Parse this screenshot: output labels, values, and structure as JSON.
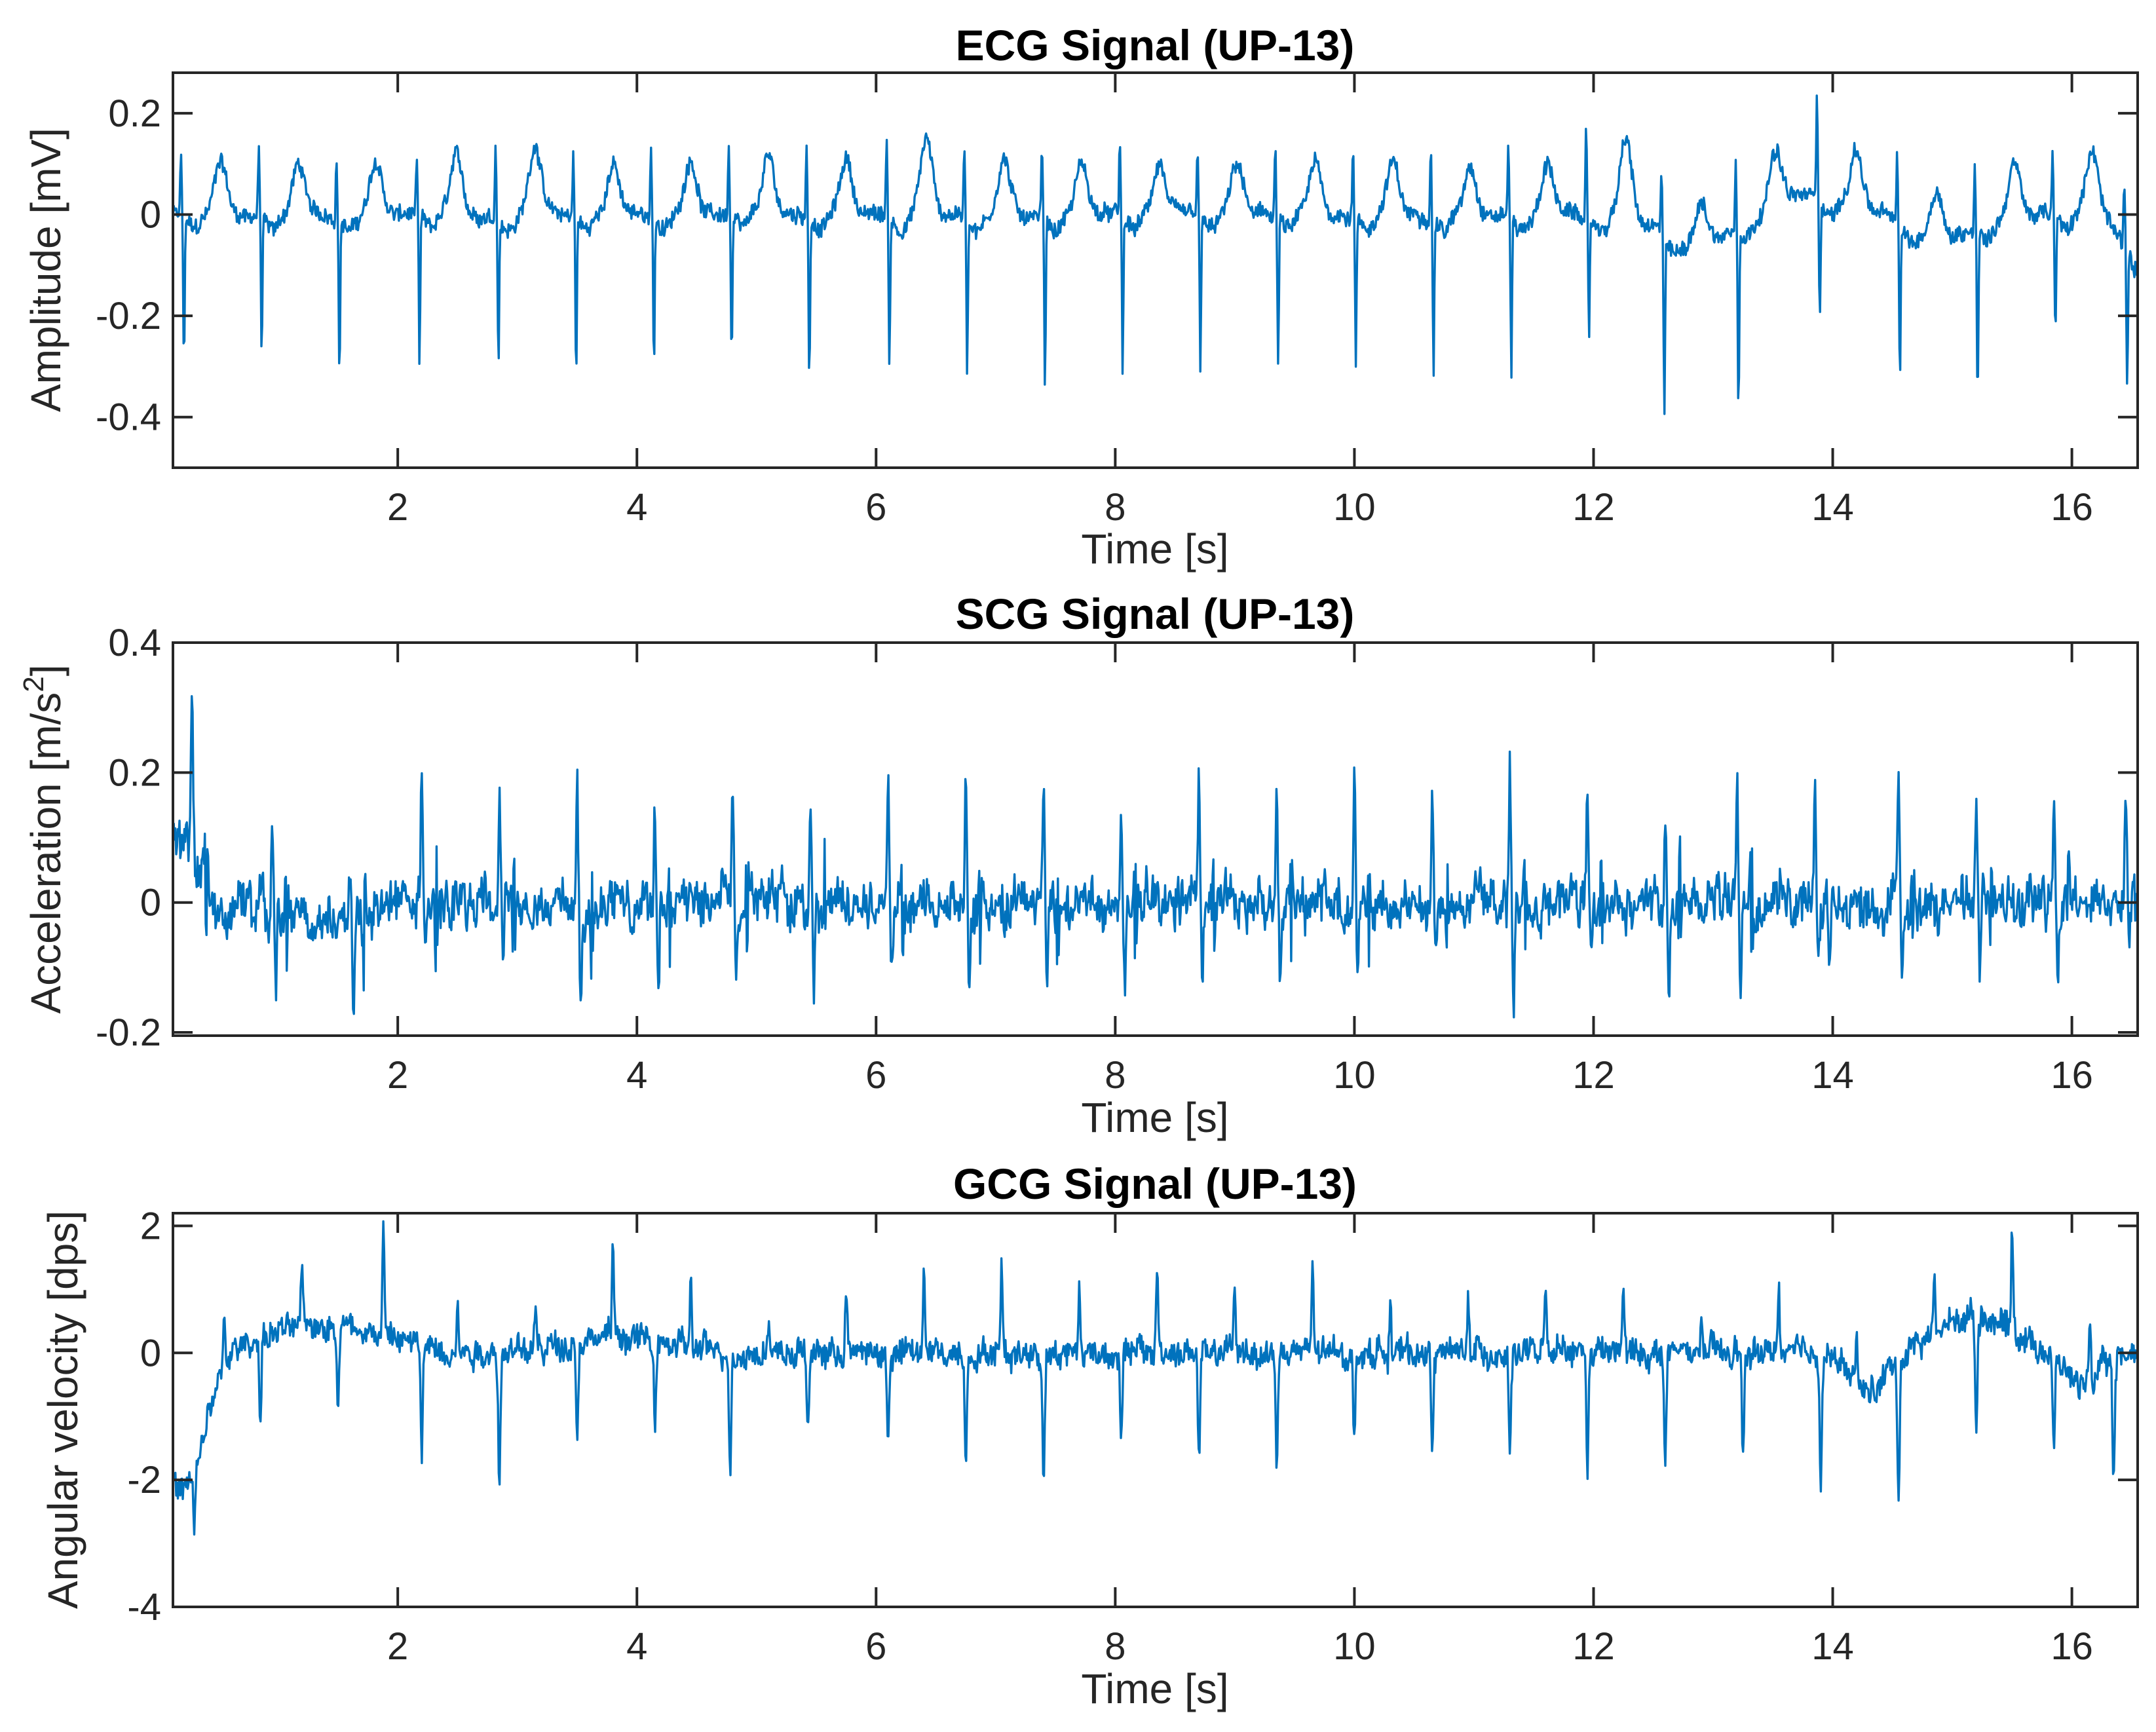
{
  "chart_data": [
    {
      "type": "line",
      "title": "ECG Signal (UP-13)",
      "xlabel": "Time [s]",
      "ylabel": "Amplitude [mV]",
      "xlim": [
        0.12,
        16.55
      ],
      "ylim": [
        -0.5,
        0.28
      ],
      "xticks": [
        2,
        4,
        6,
        8,
        10,
        12,
        14,
        16
      ],
      "yticks": [
        0.2,
        0,
        -0.2,
        -0.4
      ],
      "ytick_labels": [
        "0.2",
        "0",
        "-0.2",
        "-0.4"
      ],
      "grid": false,
      "color": "#0072BD",
      "beats": {
        "r_times": [
          0.2,
          0.85,
          1.5,
          2.17,
          2.83,
          3.48,
          4.13,
          4.78,
          5.43,
          6.1,
          6.75,
          7.4,
          8.05,
          8.7,
          9.35,
          10.0,
          10.65,
          11.3,
          11.95,
          12.58,
          13.2,
          13.88,
          14.55,
          15.2,
          15.85,
          16.45
        ],
        "r_peak": [
          0.12,
          0.14,
          0.12,
          0.12,
          0.14,
          0.12,
          0.14,
          0.14,
          0.14,
          0.14,
          0.14,
          0.14,
          0.14,
          0.14,
          0.14,
          0.14,
          0.14,
          0.14,
          0.17,
          0.13,
          0.13,
          0.21,
          0.12,
          0.14,
          0.13,
          0.12
        ],
        "s_trough": [
          -0.3,
          -0.27,
          -0.32,
          -0.3,
          -0.29,
          -0.32,
          -0.3,
          -0.29,
          -0.32,
          -0.29,
          -0.3,
          -0.34,
          -0.3,
          -0.32,
          -0.3,
          -0.29,
          -0.3,
          -0.31,
          -0.26,
          -0.36,
          -0.35,
          -0.23,
          -0.31,
          -0.34,
          -0.25,
          -0.29
        ],
        "t_wave_peak": [
          0.13,
          0.12,
          0.12,
          0.13,
          0.16,
          0.12,
          0.13,
          0.13,
          0.13,
          0.17,
          0.13,
          0.12,
          0.12,
          0.12,
          0.12,
          0.12,
          0.12,
          0.12,
          0.18,
          0.1,
          0.12,
          0.13,
          0.12,
          0.12,
          0.15,
          0.12
        ]
      },
      "baseline_approx": 0.0,
      "end_value_approx": -0.1
    },
    {
      "type": "line",
      "title": "SCG Signal (UP-13)",
      "xlabel": "Time [s]",
      "ylabel": "Acceleration [m/s²]",
      "ylabel_parts": {
        "main": "Acceleration [m/s",
        "sup": "2",
        "end": "]"
      },
      "xlim": [
        0.12,
        16.55
      ],
      "ylim": [
        -0.205,
        0.4
      ],
      "xticks": [
        2,
        4,
        6,
        8,
        10,
        12,
        14,
        16
      ],
      "yticks": [
        0.4,
        0.2,
        0,
        -0.2
      ],
      "ytick_labels": [
        "0.4",
        "0.2",
        "0",
        "-0.2"
      ],
      "grid": false,
      "color": "#0072BD",
      "beats": {
        "peak_times": [
          0.28,
          0.95,
          1.6,
          2.2,
          2.85,
          3.5,
          4.15,
          4.8,
          5.45,
          6.1,
          6.75,
          7.4,
          8.05,
          8.7,
          9.35,
          10.0,
          10.65,
          11.3,
          11.95,
          12.6,
          13.2,
          13.85,
          14.55,
          15.2,
          15.85,
          16.45
        ],
        "peak_values": [
          0.29,
          0.17,
          0.12,
          0.24,
          0.23,
          0.2,
          0.21,
          0.22,
          0.2,
          0.23,
          0.22,
          0.22,
          0.2,
          0.23,
          0.23,
          0.24,
          0.2,
          0.22,
          0.22,
          0.19,
          0.22,
          0.24,
          0.2,
          0.2,
          0.2,
          0.19
        ],
        "trough_values": [
          -0.05,
          -0.15,
          -0.19,
          -0.1,
          -0.12,
          -0.15,
          -0.14,
          -0.12,
          -0.15,
          -0.12,
          -0.14,
          -0.13,
          -0.14,
          -0.12,
          -0.13,
          -0.15,
          -0.13,
          -0.21,
          -0.12,
          -0.18,
          -0.17,
          -0.12,
          -0.14,
          -0.13,
          -0.12,
          -0.1
        ]
      },
      "start_value_approx": 0.12
    },
    {
      "type": "line",
      "title": "GCG Signal (UP-13)",
      "xlabel": "Time [s]",
      "ylabel": "Angular velocity [dps]",
      "xlim": [
        0.12,
        16.55
      ],
      "ylim": [
        -4,
        2.2
      ],
      "xticks": [
        2,
        4,
        6,
        8,
        10,
        12,
        14,
        16
      ],
      "yticks": [
        2,
        0,
        -2,
        -4
      ],
      "ytick_labels": [
        "2",
        "0",
        "-2",
        "-4"
      ],
      "grid": false,
      "color": "#0072BD",
      "beats": {
        "peak_times": [
          0.55,
          1.2,
          1.88,
          2.5,
          3.15,
          3.8,
          4.45,
          5.1,
          5.75,
          6.4,
          7.05,
          7.7,
          8.35,
          9.0,
          9.65,
          10.3,
          10.95,
          11.6,
          12.25,
          12.9,
          13.55,
          14.2,
          14.85,
          15.5,
          16.15
        ],
        "peak_values": [
          1.1,
          1.35,
          2.0,
          1.05,
          0.95,
          1.9,
          1.45,
          1.0,
          1.4,
          1.8,
          1.75,
          1.5,
          1.85,
          1.5,
          1.8,
          1.35,
          1.4,
          1.35,
          1.45,
          1.05,
          1.45,
          0.95,
          1.3,
          2.1,
          1.6
        ],
        "trough_times": [
          0.85,
          1.5,
          2.2,
          2.85,
          3.5,
          4.15,
          4.78,
          5.43,
          6.1,
          6.75,
          7.4,
          8.05,
          8.7,
          9.35,
          10.0,
          10.65,
          11.3,
          11.95,
          12.6,
          13.25,
          13.9,
          14.55,
          15.2,
          15.85,
          16.35
        ],
        "trough_values": [
          -1.5,
          -1.5,
          -2.05,
          -2.3,
          -1.85,
          -1.55,
          -2.25,
          -1.6,
          -1.85,
          -2.0,
          -2.25,
          -1.6,
          -2.05,
          -2.15,
          -1.75,
          -1.85,
          -2.0,
          -2.1,
          -2.15,
          -2.1,
          -2.2,
          -2.55,
          -2.15,
          -1.95,
          -2.2
        ]
      },
      "start_segment": {
        "t": [
          0.12,
          0.2,
          0.3,
          0.4,
          0.5
        ],
        "v": [
          -2.0,
          -2.4,
          -3.2,
          -1.0,
          -0.3
        ]
      }
    }
  ],
  "panels": {
    "ecg": {
      "title": "ECG Signal (UP-13)",
      "ylabel": "Amplitude [mV]",
      "xlabel": "Time [s]"
    },
    "scg": {
      "title": "SCG Signal (UP-13)",
      "ylabel_main": "Acceleration [m/s",
      "ylabel_sup": "2",
      "ylabel_end": "]",
      "xlabel": "Time [s]"
    },
    "gcg": {
      "title": "GCG Signal (UP-13)",
      "ylabel": "Angular velocity [dps]",
      "xlabel": "Time [s]"
    }
  }
}
